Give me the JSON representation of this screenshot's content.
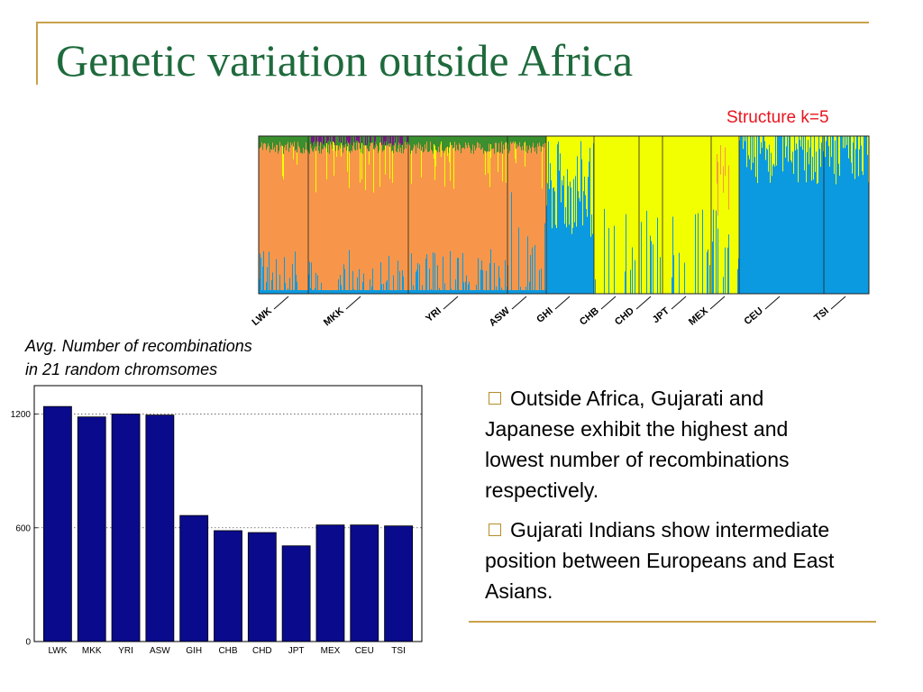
{
  "title": "Genetic variation outside Africa",
  "structure": {
    "label": "Structure k=5",
    "populations": [
      "LWK",
      "MKK",
      "YRI",
      "ASW",
      "GHI",
      "CHB",
      "CHD",
      "JPT",
      "MEX",
      "CEU",
      "TSI"
    ],
    "colors": {
      "african": "#f7964a",
      "east_asian": "#f2ff00",
      "european": "#0b9ae0",
      "top_cluster": "#3a8f2e",
      "minor_cluster": "#7a1585"
    }
  },
  "chart_caption": {
    "line1": "Avg. Number of recombinations",
    "line2": "in 21 random chromsomes"
  },
  "chart_data": {
    "type": "bar",
    "title": "Avg. Number of recombinations in 21 random chromsomes",
    "categories": [
      "LWK",
      "MKK",
      "YRI",
      "ASW",
      "GIH",
      "CHB",
      "CHD",
      "JPT",
      "MEX",
      "CEU",
      "TSI"
    ],
    "values": [
      1240,
      1185,
      1200,
      1195,
      665,
      585,
      575,
      505,
      615,
      615,
      610
    ],
    "yticks": [
      0,
      600,
      1200
    ],
    "ylim": [
      0,
      1350
    ],
    "bar_color": "#0a0a8c",
    "grid": "horizontal dotted"
  },
  "bullets": [
    "Outside Africa, Gujarati and Japanese exhibit the highest and lowest number of recombinations respectively.",
    "Gujarati Indians show intermediate position between Europeans and East Asians."
  ]
}
